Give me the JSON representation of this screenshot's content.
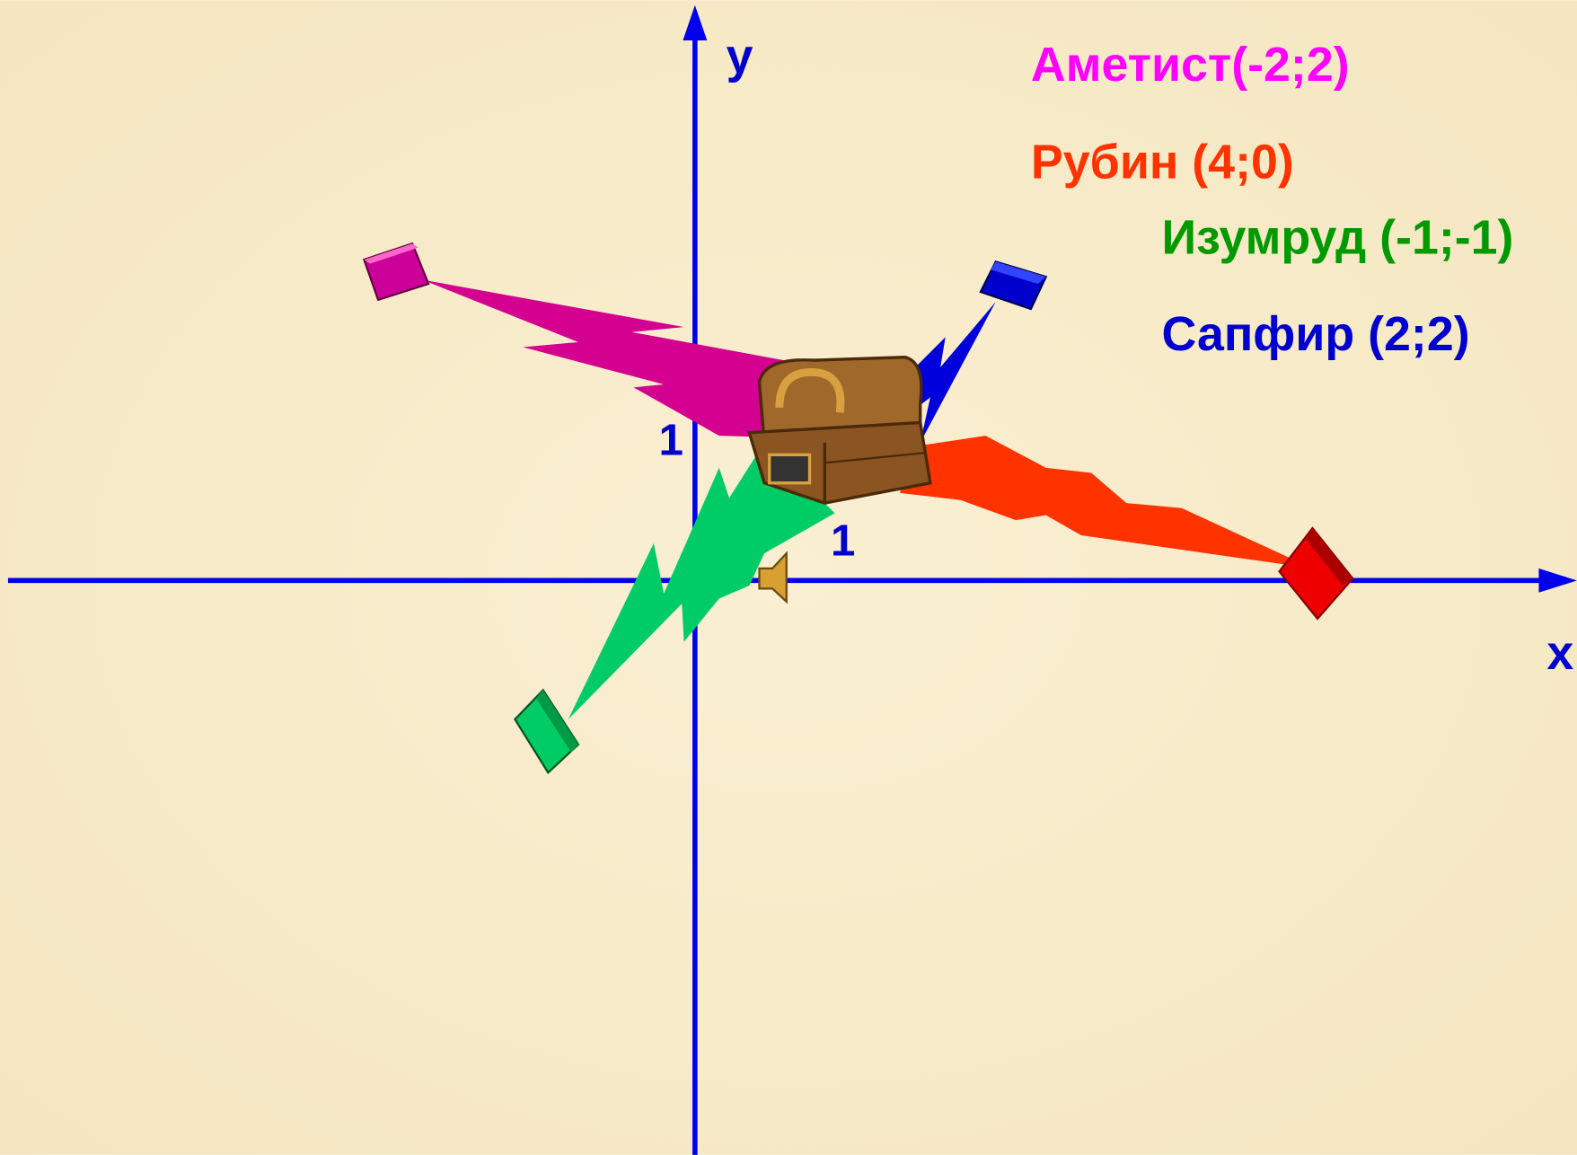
{
  "axes": {
    "x_label": "х",
    "y_label": "у",
    "x_unit": "1",
    "y_unit": "1"
  },
  "gems": [
    {
      "label": "Аметист(-2;2)"
    },
    {
      "label": "Рубин (4;0)"
    },
    {
      "label": "Изумруд (-1;-1)"
    },
    {
      "label": "Сапфир (2;2)"
    }
  ]
}
